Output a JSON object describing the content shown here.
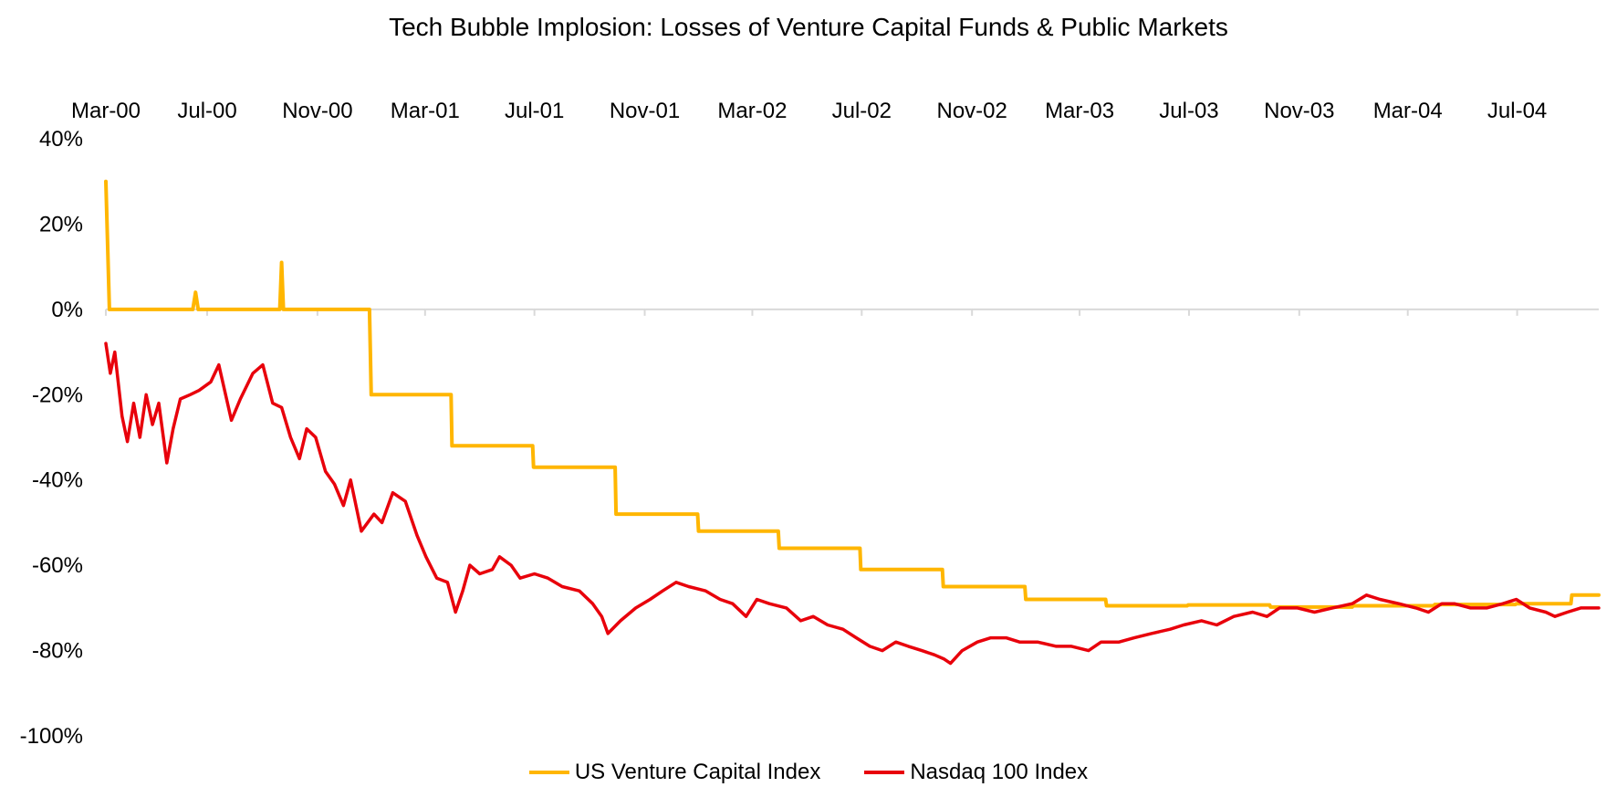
{
  "colors": {
    "vc": "#FFB600",
    "nasdaq": "#E8000B",
    "axis": "#D9D9D9"
  },
  "chart_data": {
    "type": "line",
    "title": "Tech Bubble Implosion: Losses of Venture Capital Funds & Public Markets",
    "xlabel": "",
    "ylabel": "",
    "x_range": [
      "2000-03-10",
      "2004-09-30"
    ],
    "x_tick_labels": [
      "Mar-00",
      "Jul-00",
      "Nov-00",
      "Mar-01",
      "Jul-01",
      "Nov-01",
      "Mar-02",
      "Jul-02",
      "Nov-02",
      "Mar-03",
      "Jul-03",
      "Nov-03",
      "Mar-04",
      "Jul-04"
    ],
    "x_tick_dates": [
      "2000-03-01",
      "2000-07-01",
      "2000-11-01",
      "2001-03-01",
      "2001-07-01",
      "2001-11-01",
      "2002-03-01",
      "2002-07-01",
      "2002-11-01",
      "2003-03-01",
      "2003-07-01",
      "2003-11-01",
      "2004-03-01",
      "2004-07-01"
    ],
    "ylim": [
      -100,
      40
    ],
    "y_ticks": [
      40,
      20,
      0,
      -20,
      -40,
      -60,
      -80,
      -100
    ],
    "y_tick_labels": [
      "40%",
      "20%",
      "0%",
      "-20%",
      "-40%",
      "-60%",
      "-80%",
      "-100%"
    ],
    "grid": false,
    "legend_position": "bottom",
    "series": [
      {
        "name": "US Venture Capital Index",
        "color_key": "vc",
        "style": "step",
        "points": [
          [
            "2000-03-10",
            30
          ],
          [
            "2000-03-14",
            0
          ],
          [
            "2000-06-15",
            0
          ],
          [
            "2000-06-18",
            4
          ],
          [
            "2000-06-21",
            0
          ],
          [
            "2000-09-20",
            0
          ],
          [
            "2000-09-22",
            11
          ],
          [
            "2000-09-24",
            0
          ],
          [
            "2000-12-29",
            0
          ],
          [
            "2000-12-31",
            -20
          ],
          [
            "2001-03-30",
            -20
          ],
          [
            "2001-03-31",
            -32
          ],
          [
            "2001-06-29",
            -32
          ],
          [
            "2001-06-30",
            -37
          ],
          [
            "2001-09-29",
            -37
          ],
          [
            "2001-09-30",
            -48
          ],
          [
            "2001-12-30",
            -48
          ],
          [
            "2001-12-31",
            -52
          ],
          [
            "2002-03-30",
            -52
          ],
          [
            "2002-03-31",
            -56
          ],
          [
            "2002-06-29",
            -56
          ],
          [
            "2002-06-30",
            -61
          ],
          [
            "2002-09-29",
            -61
          ],
          [
            "2002-09-30",
            -65
          ],
          [
            "2002-12-30",
            -65
          ],
          [
            "2002-12-31",
            -68
          ],
          [
            "2003-03-30",
            -68
          ],
          [
            "2003-03-31",
            -69.5
          ],
          [
            "2003-06-29",
            -69.5
          ],
          [
            "2003-06-30",
            -69.3
          ],
          [
            "2003-09-29",
            -69.3
          ],
          [
            "2003-09-30",
            -69.8
          ],
          [
            "2003-12-30",
            -69.8
          ],
          [
            "2003-12-31",
            -69.5
          ],
          [
            "2004-03-30",
            -69.5
          ],
          [
            "2004-03-31",
            -69.2
          ],
          [
            "2004-06-29",
            -69.2
          ],
          [
            "2004-06-30",
            -69.0
          ],
          [
            "2004-08-30",
            -69.0
          ],
          [
            "2004-08-31",
            -67
          ],
          [
            "2004-09-30",
            -67
          ]
        ]
      },
      {
        "name": "Nasdaq 100 Index",
        "color_key": "nasdaq",
        "style": "line",
        "points": [
          [
            "2000-03-10",
            -8
          ],
          [
            "2000-03-15",
            -15
          ],
          [
            "2000-03-20",
            -10
          ],
          [
            "2000-03-28",
            -25
          ],
          [
            "2000-04-03",
            -31
          ],
          [
            "2000-04-10",
            -22
          ],
          [
            "2000-04-17",
            -30
          ],
          [
            "2000-04-24",
            -20
          ],
          [
            "2000-05-01",
            -27
          ],
          [
            "2000-05-08",
            -22
          ],
          [
            "2000-05-17",
            -36
          ],
          [
            "2000-05-24",
            -28
          ],
          [
            "2000-06-01",
            -21
          ],
          [
            "2000-06-12",
            -20
          ],
          [
            "2000-06-22",
            -19
          ],
          [
            "2000-07-05",
            -17
          ],
          [
            "2000-07-14",
            -13
          ],
          [
            "2000-07-28",
            -26
          ],
          [
            "2000-08-07",
            -21
          ],
          [
            "2000-08-21",
            -15
          ],
          [
            "2000-09-01",
            -13
          ],
          [
            "2000-09-12",
            -22
          ],
          [
            "2000-09-22",
            -23
          ],
          [
            "2000-10-02",
            -30
          ],
          [
            "2000-10-12",
            -35
          ],
          [
            "2000-10-20",
            -28
          ],
          [
            "2000-10-30",
            -30
          ],
          [
            "2000-11-10",
            -38
          ],
          [
            "2000-11-20",
            -41
          ],
          [
            "2000-11-30",
            -46
          ],
          [
            "2000-12-08",
            -40
          ],
          [
            "2000-12-20",
            -52
          ],
          [
            "2001-01-03",
            -48
          ],
          [
            "2001-01-12",
            -50
          ],
          [
            "2001-01-24",
            -43
          ],
          [
            "2001-02-07",
            -45
          ],
          [
            "2001-02-20",
            -53
          ],
          [
            "2001-03-02",
            -58
          ],
          [
            "2001-03-14",
            -63
          ],
          [
            "2001-03-26",
            -64
          ],
          [
            "2001-04-04",
            -71
          ],
          [
            "2001-04-12",
            -66
          ],
          [
            "2001-04-20",
            -60
          ],
          [
            "2001-05-01",
            -62
          ],
          [
            "2001-05-15",
            -61
          ],
          [
            "2001-05-23",
            -58
          ],
          [
            "2001-06-05",
            -60
          ],
          [
            "2001-06-15",
            -63
          ],
          [
            "2001-07-01",
            -62
          ],
          [
            "2001-07-16",
            -63
          ],
          [
            "2001-08-01",
            -65
          ],
          [
            "2001-08-20",
            -66
          ],
          [
            "2001-09-04",
            -69
          ],
          [
            "2001-09-14",
            -72
          ],
          [
            "2001-09-21",
            -76
          ],
          [
            "2001-10-05",
            -73
          ],
          [
            "2001-10-22",
            -70
          ],
          [
            "2001-11-07",
            -68
          ],
          [
            "2001-11-21",
            -66
          ],
          [
            "2001-12-06",
            -64
          ],
          [
            "2001-12-20",
            -65
          ],
          [
            "2002-01-08",
            -66
          ],
          [
            "2002-01-24",
            -68
          ],
          [
            "2002-02-07",
            -69
          ],
          [
            "2002-02-22",
            -72
          ],
          [
            "2002-03-06",
            -68
          ],
          [
            "2002-03-20",
            -69
          ],
          [
            "2002-04-08",
            -70
          ],
          [
            "2002-04-24",
            -73
          ],
          [
            "2002-05-08",
            -72
          ],
          [
            "2002-05-24",
            -74
          ],
          [
            "2002-06-10",
            -75
          ],
          [
            "2002-06-25",
            -77
          ],
          [
            "2002-07-10",
            -79
          ],
          [
            "2002-07-24",
            -80
          ],
          [
            "2002-08-08",
            -78
          ],
          [
            "2002-08-22",
            -79
          ],
          [
            "2002-09-06",
            -80
          ],
          [
            "2002-09-20",
            -81
          ],
          [
            "2002-10-01",
            -82
          ],
          [
            "2002-10-08",
            -83
          ],
          [
            "2002-10-21",
            -80
          ],
          [
            "2002-11-07",
            -78
          ],
          [
            "2002-11-22",
            -77
          ],
          [
            "2002-12-09",
            -77
          ],
          [
            "2002-12-24",
            -78
          ],
          [
            "2003-01-13",
            -78
          ],
          [
            "2003-02-03",
            -79
          ],
          [
            "2003-02-20",
            -79
          ],
          [
            "2003-03-11",
            -80
          ],
          [
            "2003-03-25",
            -78
          ],
          [
            "2003-04-14",
            -78
          ],
          [
            "2003-05-01",
            -77
          ],
          [
            "2003-05-20",
            -76
          ],
          [
            "2003-06-10",
            -75
          ],
          [
            "2003-06-25",
            -74
          ],
          [
            "2003-07-15",
            -73
          ],
          [
            "2003-08-01",
            -74
          ],
          [
            "2003-08-20",
            -72
          ],
          [
            "2003-09-10",
            -71
          ],
          [
            "2003-09-26",
            -72
          ],
          [
            "2003-10-10",
            -70
          ],
          [
            "2003-10-30",
            -70
          ],
          [
            "2003-11-18",
            -71
          ],
          [
            "2003-12-08",
            -70
          ],
          [
            "2003-12-30",
            -69
          ],
          [
            "2004-01-15",
            -67
          ],
          [
            "2004-01-30",
            -68
          ],
          [
            "2004-02-20",
            -69
          ],
          [
            "2004-03-10",
            -70
          ],
          [
            "2004-03-24",
            -71
          ],
          [
            "2004-04-08",
            -69
          ],
          [
            "2004-04-22",
            -69
          ],
          [
            "2004-05-10",
            -70
          ],
          [
            "2004-05-28",
            -70
          ],
          [
            "2004-06-15",
            -69
          ],
          [
            "2004-06-30",
            -68
          ],
          [
            "2004-07-15",
            -70
          ],
          [
            "2004-08-02",
            -71
          ],
          [
            "2004-08-12",
            -72
          ],
          [
            "2004-08-26",
            -71
          ],
          [
            "2004-09-10",
            -70
          ],
          [
            "2004-09-22",
            -70
          ],
          [
            "2004-09-30",
            -70
          ]
        ]
      }
    ]
  }
}
